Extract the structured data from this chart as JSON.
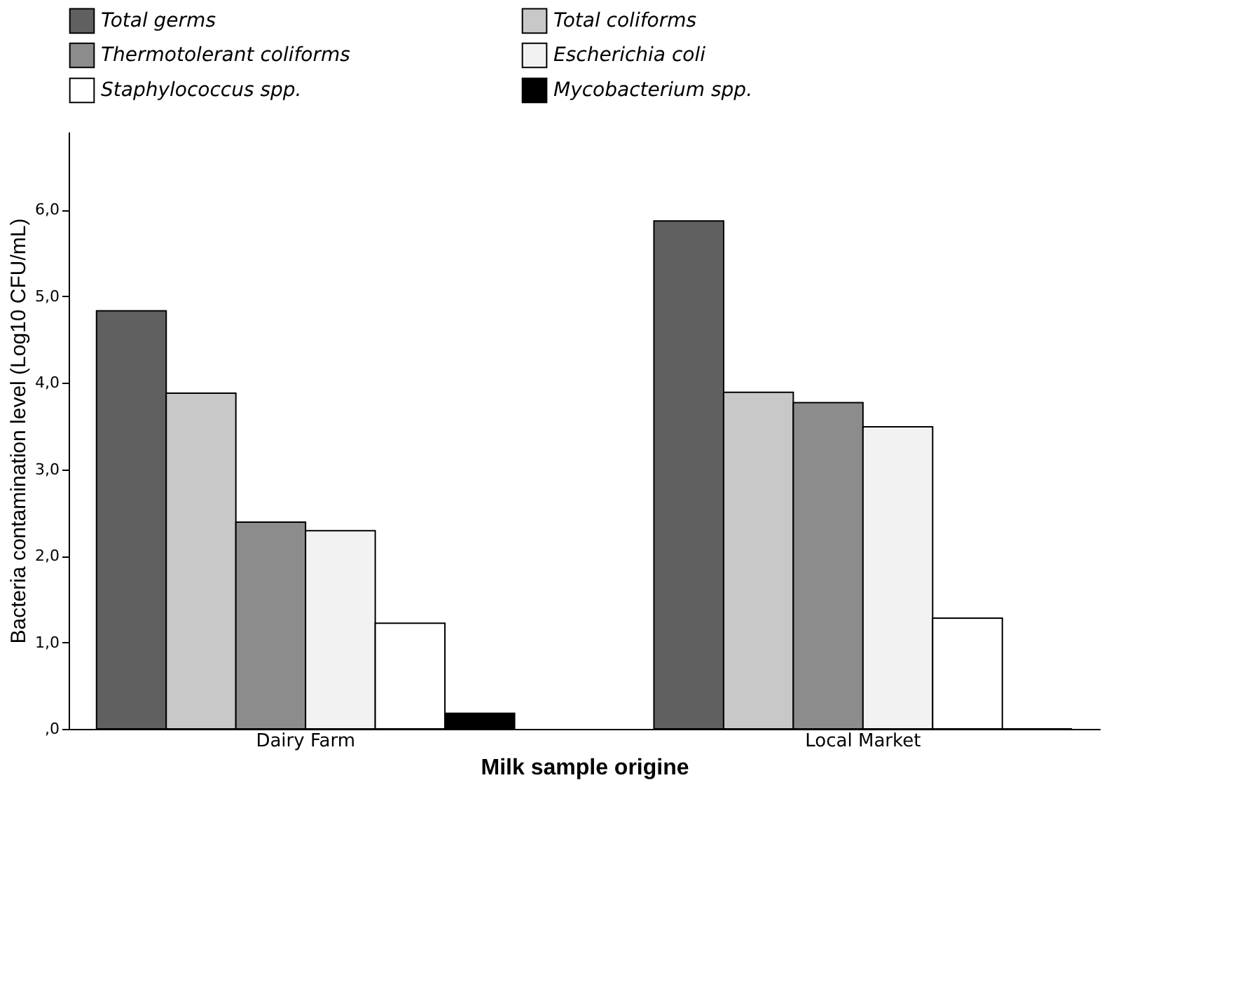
{
  "chart_data": {
    "type": "bar",
    "xlabel": "Milk sample origine",
    "ylabel": "Bacteria contamination level (Log10 CFU/mL)",
    "categories": [
      "Dairy Farm",
      "Local Market"
    ],
    "series": [
      {
        "name": "Total germs",
        "color": "#606060",
        "values": [
          4.83,
          5.87
        ]
      },
      {
        "name": "Total coliforms",
        "color": "#c8c8c8",
        "values": [
          3.88,
          3.89
        ]
      },
      {
        "name": "Thermotolerant coliforms",
        "color": "#8c8c8c",
        "values": [
          2.39,
          3.77
        ]
      },
      {
        "name": "Escherichia coli",
        "color": "#f2f2f2",
        "values": [
          2.29,
          3.49
        ]
      },
      {
        "name": "Staphylococcus spp.",
        "color": "#ffffff",
        "values": [
          1.22,
          1.28
        ]
      },
      {
        "name": "Mycobacterium spp.",
        "color": "#000000",
        "values": [
          0.18,
          0
        ]
      }
    ],
    "ylim": [
      0,
      6.9
    ],
    "yticks": [
      {
        "value": 0,
        "label": ",0"
      },
      {
        "value": 1,
        "label": "1,0"
      },
      {
        "value": 2,
        "label": "2,0"
      },
      {
        "value": 3,
        "label": "3,0"
      },
      {
        "value": 4,
        "label": "4,0"
      },
      {
        "value": 5,
        "label": "5,0"
      },
      {
        "value": 6,
        "label": "6,0"
      }
    ],
    "grid": false,
    "legend": "top"
  }
}
